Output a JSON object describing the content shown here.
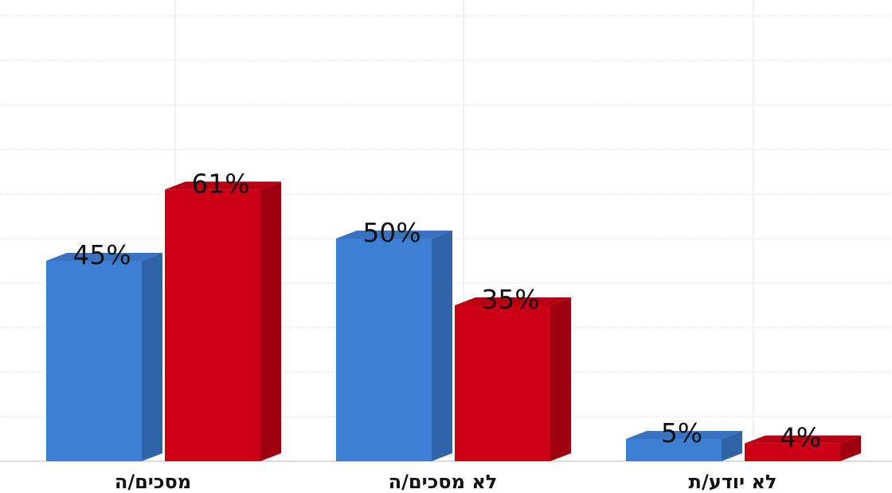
{
  "colors": {
    "series_1": "#3e7fd6",
    "series_2": "#cc0014",
    "grid": "#d9d9d9"
  },
  "chart_data": {
    "type": "bar",
    "style": "3d-columns",
    "title": "",
    "xlabel": "",
    "ylabel": "",
    "ylim": [
      0,
      100
    ],
    "grid": true,
    "legend": "none",
    "categories": [
      "מסכים/ה",
      "לא מסכים/ה",
      "לא יודע/ת"
    ],
    "series": [
      {
        "color_key": "series_1",
        "values": [
          45,
          50,
          5
        ],
        "labels": [
          "45%",
          "50%",
          "5%"
        ]
      },
      {
        "color_key": "series_2",
        "values": [
          61,
          35,
          4
        ],
        "labels": [
          "61%",
          "35%",
          "4%"
        ]
      }
    ]
  }
}
